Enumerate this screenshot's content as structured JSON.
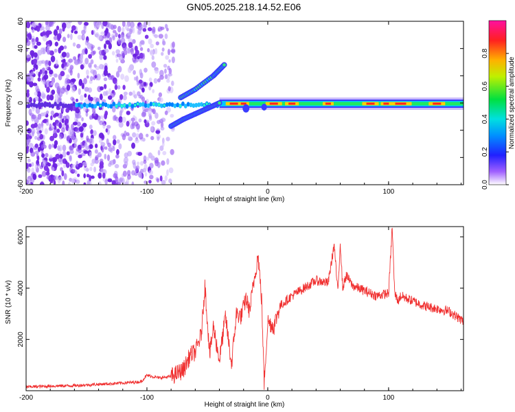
{
  "chart_data": [
    {
      "type": "heatmap",
      "title": "GN05.2025.218.14.52.E06",
      "xlabel": "Height of straight line (km)",
      "ylabel": "Frequency (Hz)",
      "xlim": [
        -200,
        162
      ],
      "ylim": [
        -60,
        60
      ],
      "xticks": [
        "-200",
        "-100",
        "0",
        "100"
      ],
      "yticks": [
        "60",
        "40",
        "20",
        "0",
        "-20",
        "-40",
        "-60"
      ],
      "colorbar": {
        "label": "Normalized spectral amplitude",
        "range": [
          0,
          1
        ],
        "ticks": [
          "0.0",
          "0.2",
          "0.4",
          "0.6",
          "0.8"
        ],
        "colormap": "rainbow (purple-blue-cyan-green-yellow-red-magenta)"
      },
      "features": {
        "noise_region_x": [
          -200,
          -78
        ],
        "main_band": {
          "x": [
            -200,
            162
          ],
          "frequency_hz": [
            -3,
            2
          ]
        },
        "upper_branch": [
          [
            -72,
            4
          ],
          [
            -60,
            10
          ],
          [
            -45,
            20
          ],
          [
            -36,
            28
          ]
        ],
        "lower_branch": [
          [
            -80,
            -17
          ],
          [
            -70,
            -12
          ],
          [
            -60,
            -8
          ],
          [
            -50,
            -4
          ],
          [
            -40,
            0
          ]
        ]
      },
      "colors": {
        "noise": "#7030e0",
        "band_edge": "#3040ff",
        "band_core": "#10e070",
        "band_peak": "#ff2020"
      }
    },
    {
      "type": "line",
      "title": "",
      "xlabel": "Height of straight line (km)",
      "ylabel": "SNR (10 * v/v)",
      "xlim": [
        -200,
        162
      ],
      "ylim": [
        0,
        6400
      ],
      "xticks": [
        "-200",
        "-100",
        "0",
        "100"
      ],
      "yticks": [
        "6000",
        "4000",
        "2000"
      ],
      "color": "#f03030",
      "series": [
        {
          "x": [
            -200,
            -180,
            -160,
            -140,
            -120,
            -105,
            -100,
            -90,
            -80,
            -70,
            -64,
            -60,
            -55,
            -52,
            -48,
            -45,
            -40,
            -35,
            -30,
            -26,
            -22,
            -18,
            -15,
            -12,
            -8,
            -5,
            -3,
            0,
            5,
            10,
            20,
            30,
            40,
            50,
            55,
            58,
            60,
            62,
            65,
            70,
            80,
            90,
            100,
            103,
            105,
            108,
            110,
            120,
            130,
            140,
            150,
            162
          ],
          "y": [
            150,
            180,
            200,
            250,
            300,
            350,
            600,
            500,
            550,
            800,
            1400,
            1500,
            2200,
            4100,
            1400,
            2500,
            1200,
            2900,
            1000,
            3000,
            2900,
            3600,
            3100,
            4100,
            5300,
            3500,
            300,
            2700,
            2500,
            3300,
            3700,
            4000,
            4300,
            4200,
            5700,
            3800,
            5800,
            4000,
            4500,
            4100,
            3900,
            3700,
            3800,
            6400,
            3800,
            3500,
            3700,
            3500,
            3300,
            3200,
            3100,
            2700
          ]
        }
      ]
    }
  ]
}
